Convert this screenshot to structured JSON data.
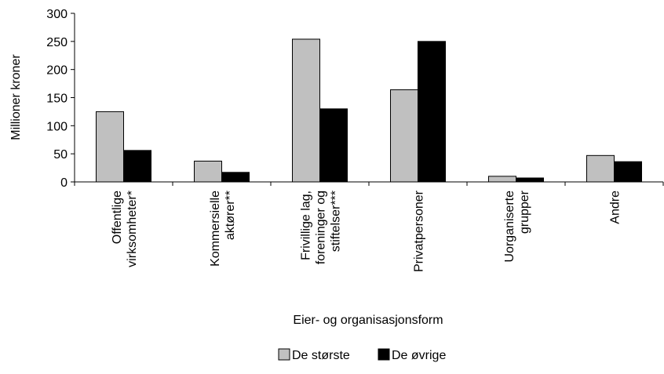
{
  "chart_data": {
    "type": "bar",
    "title": "",
    "xlabel": "Eier- og organisasjonsform",
    "ylabel": "Millioner kroner",
    "ylim": [
      0,
      300
    ],
    "yticks": [
      0,
      50,
      100,
      150,
      200,
      250,
      300
    ],
    "categories": [
      [
        "Offentlige",
        "virksomheter*"
      ],
      [
        "Kommersielle",
        "aktører**"
      ],
      [
        "Frivillige lag,",
        "foreninger og",
        "stiftelser***"
      ],
      [
        "Privatpersoner"
      ],
      [
        "Uorganiserte",
        "grupper"
      ],
      [
        "Andre"
      ]
    ],
    "series": [
      {
        "name": "De største",
        "color": "#c0c0c0",
        "values": [
          125,
          37,
          254,
          164,
          10,
          47
        ]
      },
      {
        "name": "De øvrige",
        "color": "#000000",
        "values": [
          56,
          17,
          130,
          250,
          7,
          36
        ]
      }
    ],
    "legend_position": "bottom",
    "grid": false
  }
}
